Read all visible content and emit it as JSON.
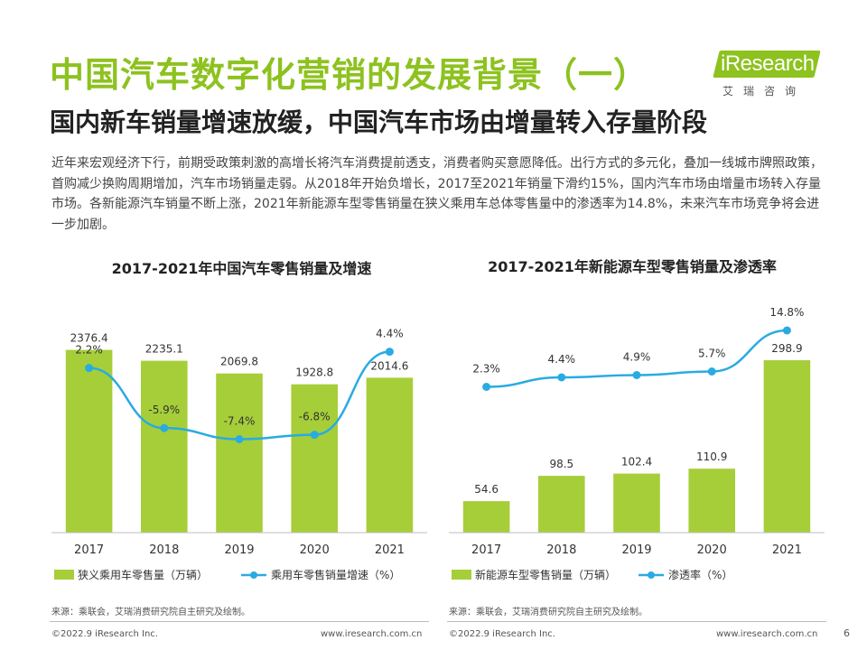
{
  "header": {
    "title": "中国汽车数字化营销的发展背景（一）",
    "subtitle": "国内新车销量增速放缓，中国汽车市场由增量转入存量阶段"
  },
  "logo": {
    "brand": "iResearch",
    "cn": "艾瑞咨询"
  },
  "intro": "近年来宏观经济下行，前期受政策刺激的高增长将汽车消费提前透支，消费者购买意愿降低。出行方式的多元化，叠加一线城市牌照政策，首购减少换购周期增加，汽车市场销量走弱。从2018年开始负增长，2017至2021年销量下滑约15%，国内汽车市场由增量市场转入存量市场。各新能源汽车销量不断上涨，2021年新能源车型零售销量在狭义乘用车总体零售量中的渗透率为14.8%，未来汽车市场竞争将会进一步加剧。",
  "colors": {
    "accent_green": "#8dc21f",
    "bar_green": "#a6ce39",
    "line_blue": "#29abe2"
  },
  "chart_data": [
    {
      "type": "bar",
      "title": "2017-2021年中国汽车零售销量及增速",
      "categories": [
        "2017",
        "2018",
        "2019",
        "2020",
        "2021"
      ],
      "series": [
        {
          "name": "狭义乘用车零售量（万辆）",
          "kind": "bar",
          "values": [
            2376.4,
            2235.1,
            2069.8,
            1928.8,
            2014.6
          ],
          "labels": [
            "2376.4",
            "2235.1",
            "2069.8",
            "1928.8",
            "2014.6"
          ]
        },
        {
          "name": "乘用车零售销量增速（%）",
          "kind": "line",
          "values": [
            2.2,
            -5.9,
            -7.4,
            -6.8,
            4.4
          ],
          "labels": [
            "2.2%",
            "-5.9%",
            "-7.4%",
            "-6.8%",
            "4.4%"
          ]
        }
      ],
      "bar_ylim": [
        0,
        2700
      ],
      "line_ylim": [
        -20,
        8
      ],
      "legend_position": "bottom",
      "grid": false,
      "source": "来源：乘联会，艾瑞消费研究院自主研究及绘制。"
    },
    {
      "type": "bar",
      "title": "2017-2021年新能源车型零售销量及渗透率",
      "categories": [
        "2017",
        "2018",
        "2019",
        "2020",
        "2021"
      ],
      "series": [
        {
          "name": "新能源车型零售销量（万辆）",
          "kind": "bar",
          "values": [
            54.6,
            98.5,
            102.4,
            110.9,
            298.9
          ],
          "labels": [
            "54.6",
            "98.5",
            "102.4",
            "110.9",
            "298.9"
          ]
        },
        {
          "name": "渗透率（%）",
          "kind": "line",
          "values": [
            2.3,
            4.4,
            4.9,
            5.7,
            14.8
          ],
          "labels": [
            "2.3%",
            "4.4%",
            "4.9%",
            "5.7%",
            "14.8%"
          ]
        }
      ],
      "bar_ylim": [
        0,
        360
      ],
      "line_ylim": [
        -30,
        16
      ],
      "legend_position": "bottom",
      "grid": false,
      "source": "来源：乘联会，艾瑞消费研究院自主研究及绘制。"
    }
  ],
  "footer": {
    "copyright": "©2022.9 iResearch Inc.",
    "website": "www.iresearch.com.cn",
    "page": "6"
  }
}
